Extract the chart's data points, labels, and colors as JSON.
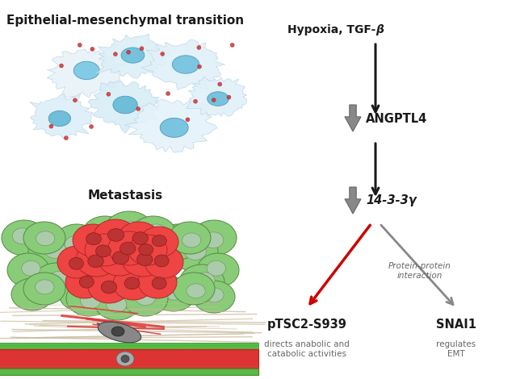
{
  "background_color": "#ffffff",
  "left_title": "Epithelial-mesenchymal transition",
  "left_subtitle": "Metastasis",
  "right_top_label": "Hypoxia, TGF-β",
  "angptl4_label": "ANGPTL4",
  "node_14_3_3": "14-3-3γ",
  "pTSC2_label": "pTSC2-S939",
  "pTSC2_sub": "directs anabolic and\ncatabolic activities",
  "SNAI1_label": "SNAI1",
  "SNAI1_sub": "regulates\nEMT",
  "protein_protein_label": "Protein-protein\ninteraction",
  "arrow_black_color": "#1a1a1a",
  "arrow_gray_color": "#888888",
  "arrow_red_color": "#cc0000",
  "text_color": "#1a1a1a",
  "sub_text_color": "#666666",
  "gray_up_arrow_color": "#888888",
  "gray_up_arrow_edge": "#666666",
  "cell_body_color": "#d8eef7",
  "cell_edge_color": "#b0cce0",
  "nucleus_color": "#7ec8e3",
  "nucleus_edge": "#5aaac8",
  "red_dot_color": "#cc3333",
  "green_cell_color": "#88cc77",
  "green_cell_edge": "#558844",
  "green_nucleus_color": "#aaddaa",
  "green_nucleus_edge": "#779966",
  "red_tumor_color": "#ee4444",
  "red_tumor_edge": "#aa2222",
  "red_tumor_nucleus": "#cc3333",
  "fiber_tan_color": "#c8b89a",
  "fiber_red_color": "#dd3333",
  "vessel_red": "#dd3333",
  "vessel_green": "#55bb44",
  "vessel_green_edge": "#338822",
  "migrating_cell_color": "#888888",
  "migrating_cell_edge": "#444444",
  "migrating_nucleus_color": "#555555"
}
